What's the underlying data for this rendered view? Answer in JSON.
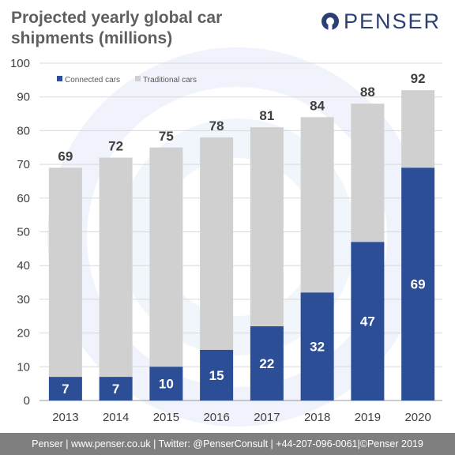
{
  "header": {
    "title": "Projected yearly global car shipments (millions)",
    "logo_text": "PENSER"
  },
  "chart_data": {
    "type": "bar",
    "stacked": true,
    "categories": [
      "2013",
      "2014",
      "2015",
      "2016",
      "2017",
      "2018",
      "2019",
      "2020"
    ],
    "series": [
      {
        "name": "Connected cars",
        "values": [
          7,
          7,
          10,
          15,
          22,
          32,
          47,
          69
        ],
        "color": "#2b4e96"
      },
      {
        "name": "Traditional cars",
        "values": [
          62,
          65,
          65,
          63,
          59,
          52,
          41,
          23
        ],
        "color": "#d0d0d0"
      }
    ],
    "totals": [
      69,
      72,
      75,
      78,
      81,
      84,
      88,
      92
    ],
    "ylim": [
      0,
      100
    ],
    "yticks": [
      0,
      10,
      20,
      30,
      40,
      50,
      60,
      70,
      80,
      90,
      100
    ],
    "grid": true,
    "legend": "top-left"
  },
  "footer": {
    "text": "Penser | www.penser.co.uk | Twitter: @PenserConsult | +44-207-096-0061|©Penser 2019"
  },
  "colors": {
    "connected": "#2b4e96",
    "traditional": "#d0d0d0",
    "brand": "#2a3f73",
    "footer_bg": "#7f7f7f"
  }
}
